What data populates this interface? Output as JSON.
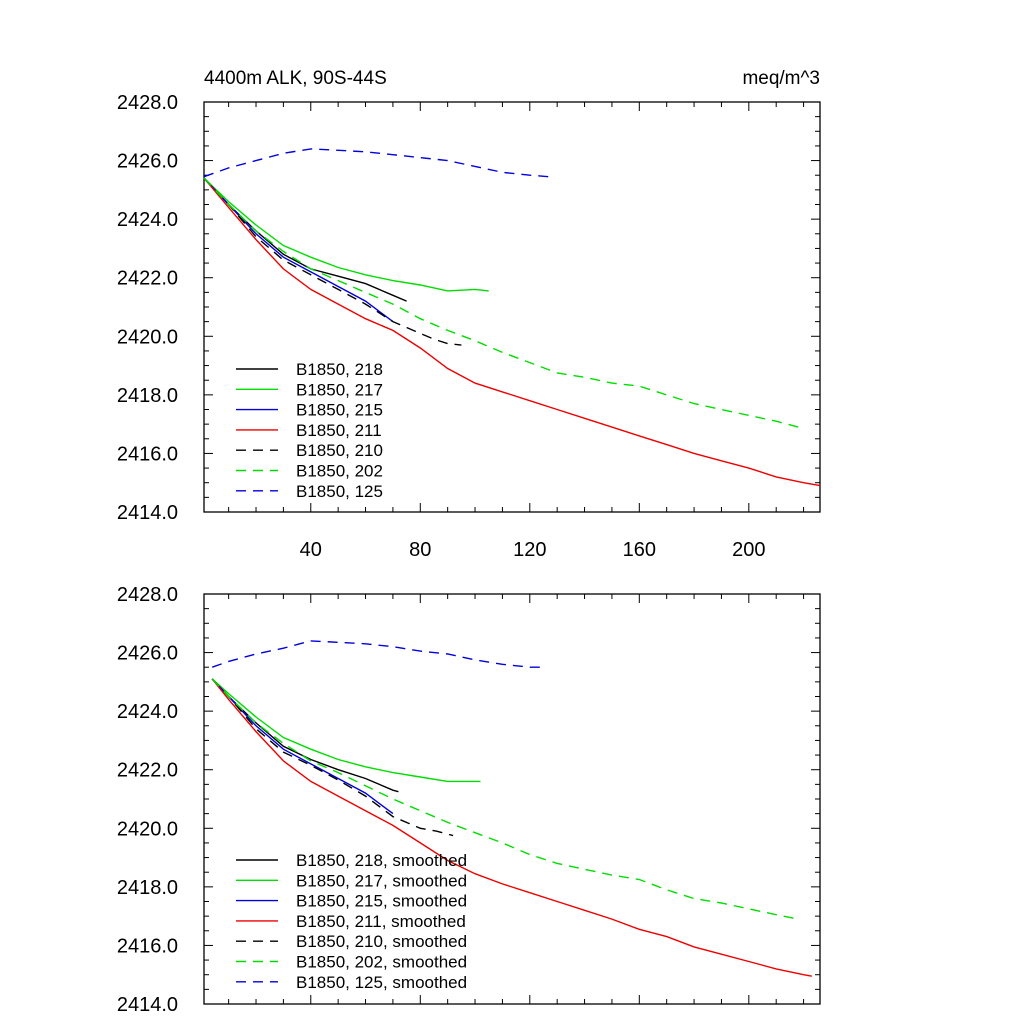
{
  "figure": {
    "title_left": "4400m ALK, 90S-44S",
    "title_right": "meq/m^3"
  },
  "colors": {
    "black": "#000000",
    "green": "#00dd00",
    "blue": "#0000dd",
    "red": "#ee0000"
  },
  "chart_data": [
    {
      "type": "line",
      "title": "4400m ALK, 90S-44S",
      "units": "meq/m^3",
      "xlim": [
        1,
        226
      ],
      "ylim": [
        2414.0,
        2428.0
      ],
      "xticks": [
        40,
        80,
        120,
        160,
        200
      ],
      "xtick_labels": [
        "40",
        "80",
        "120",
        "160",
        "200"
      ],
      "yticks": [
        2414,
        2416,
        2418,
        2420,
        2422,
        2424,
        2426,
        2428
      ],
      "ytick_labels": [
        "2414.0",
        "2416.0",
        "2418.0",
        "2420.0",
        "2422.0",
        "2424.0",
        "2426.0",
        "2428.0"
      ],
      "legend_position": "bottom-left",
      "grid": false,
      "series": [
        {
          "name": "B1850, 218",
          "color": "black",
          "dash": "solid",
          "x": [
            1,
            10,
            20,
            30,
            40,
            50,
            60,
            70,
            75
          ],
          "y": [
            2425.4,
            2424.5,
            2423.6,
            2422.8,
            2422.3,
            2422.05,
            2421.8,
            2421.4,
            2421.2
          ]
        },
        {
          "name": "B1850, 217",
          "color": "green",
          "dash": "solid",
          "x": [
            1,
            10,
            20,
            30,
            40,
            50,
            60,
            70,
            80,
            90,
            100,
            105
          ],
          "y": [
            2425.4,
            2424.6,
            2423.8,
            2423.1,
            2422.7,
            2422.35,
            2422.1,
            2421.9,
            2421.75,
            2421.55,
            2421.6,
            2421.55
          ]
        },
        {
          "name": "B1850, 215",
          "color": "blue",
          "dash": "solid",
          "x": [
            1,
            10,
            20,
            30,
            40,
            50,
            60,
            70
          ],
          "y": [
            2425.4,
            2424.5,
            2423.5,
            2422.7,
            2422.2,
            2421.7,
            2421.2,
            2420.5
          ]
        },
        {
          "name": "B1850, 211",
          "color": "red",
          "dash": "solid",
          "x": [
            1,
            10,
            20,
            30,
            40,
            50,
            60,
            70,
            80,
            90,
            100,
            110,
            120,
            130,
            140,
            150,
            160,
            170,
            180,
            190,
            200,
            210,
            220,
            226
          ],
          "y": [
            2425.4,
            2424.4,
            2423.3,
            2422.3,
            2421.6,
            2421.1,
            2420.6,
            2420.2,
            2419.6,
            2418.9,
            2418.4,
            2418.1,
            2417.8,
            2417.5,
            2417.2,
            2416.9,
            2416.6,
            2416.3,
            2416.0,
            2415.75,
            2415.5,
            2415.2,
            2415.0,
            2414.9
          ]
        },
        {
          "name": "B1850, 210",
          "color": "black",
          "dash": "dashed",
          "x": [
            1,
            10,
            20,
            30,
            40,
            50,
            60,
            70,
            80,
            85,
            90,
            95
          ],
          "y": [
            2425.4,
            2424.5,
            2423.4,
            2422.6,
            2422.1,
            2421.6,
            2421.1,
            2420.5,
            2420.1,
            2419.9,
            2419.75,
            2419.7
          ]
        },
        {
          "name": "B1850, 202",
          "color": "green",
          "dash": "dashed",
          "x": [
            1,
            10,
            20,
            30,
            40,
            50,
            60,
            70,
            80,
            90,
            100,
            110,
            120,
            130,
            140,
            150,
            160,
            170,
            180,
            190,
            200,
            210,
            220
          ],
          "y": [
            2425.4,
            2424.5,
            2423.6,
            2422.9,
            2422.3,
            2421.9,
            2421.5,
            2421.1,
            2420.6,
            2420.2,
            2419.85,
            2419.45,
            2419.1,
            2418.75,
            2418.6,
            2418.4,
            2418.3,
            2418.0,
            2417.7,
            2417.5,
            2417.3,
            2417.1,
            2416.85
          ]
        },
        {
          "name": "B1850, 125",
          "color": "blue",
          "dash": "dashed",
          "x": [
            1,
            10,
            20,
            30,
            40,
            50,
            60,
            70,
            80,
            90,
            100,
            110,
            120,
            127
          ],
          "y": [
            2425.45,
            2425.75,
            2426.0,
            2426.25,
            2426.4,
            2426.35,
            2426.3,
            2426.2,
            2426.1,
            2426.0,
            2425.8,
            2425.6,
            2425.5,
            2425.45
          ]
        }
      ]
    },
    {
      "type": "line",
      "xlim": [
        1,
        226
      ],
      "ylim": [
        2414.0,
        2428.0
      ],
      "yticks": [
        2414,
        2416,
        2418,
        2420,
        2422,
        2424,
        2426,
        2428
      ],
      "ytick_labels": [
        "2414.0",
        "2416.0",
        "2418.0",
        "2420.0",
        "2422.0",
        "2424.0",
        "2426.0",
        "2428.0"
      ],
      "legend_position": "bottom-left",
      "grid": false,
      "series": [
        {
          "name": "B1850, 218, smoothed",
          "color": "black",
          "dash": "solid",
          "x": [
            4,
            10,
            20,
            30,
            40,
            50,
            60,
            70,
            72
          ],
          "y": [
            2425.1,
            2424.5,
            2423.6,
            2422.8,
            2422.35,
            2422.0,
            2421.7,
            2421.3,
            2421.25
          ]
        },
        {
          "name": "B1850, 217, smoothed",
          "color": "green",
          "dash": "solid",
          "x": [
            4,
            10,
            20,
            30,
            40,
            50,
            60,
            70,
            80,
            90,
            100,
            102
          ],
          "y": [
            2425.1,
            2424.6,
            2423.8,
            2423.1,
            2422.7,
            2422.35,
            2422.1,
            2421.9,
            2421.75,
            2421.6,
            2421.6,
            2421.6
          ]
        },
        {
          "name": "B1850, 215, smoothed",
          "color": "blue",
          "dash": "solid",
          "x": [
            4,
            10,
            20,
            30,
            40,
            50,
            60,
            70
          ],
          "y": [
            2425.1,
            2424.5,
            2423.5,
            2422.7,
            2422.2,
            2421.7,
            2421.2,
            2420.5
          ]
        },
        {
          "name": "B1850, 211, smoothed",
          "color": "red",
          "dash": "solid",
          "x": [
            4,
            10,
            20,
            30,
            40,
            50,
            60,
            70,
            80,
            90,
            100,
            110,
            120,
            130,
            140,
            150,
            160,
            170,
            180,
            190,
            200,
            210,
            220,
            223
          ],
          "y": [
            2425.1,
            2424.4,
            2423.3,
            2422.3,
            2421.6,
            2421.1,
            2420.6,
            2420.1,
            2419.5,
            2418.9,
            2418.45,
            2418.1,
            2417.8,
            2417.5,
            2417.2,
            2416.9,
            2416.55,
            2416.3,
            2415.95,
            2415.7,
            2415.45,
            2415.2,
            2415.0,
            2414.95
          ]
        },
        {
          "name": "B1850, 210, smoothed",
          "color": "black",
          "dash": "dashed",
          "x": [
            4,
            10,
            20,
            30,
            40,
            50,
            60,
            70,
            80,
            86,
            92
          ],
          "y": [
            2425.1,
            2424.5,
            2423.4,
            2422.6,
            2422.15,
            2421.65,
            2421.1,
            2420.4,
            2420.0,
            2419.9,
            2419.75
          ]
        },
        {
          "name": "B1850, 202, smoothed",
          "color": "green",
          "dash": "dashed",
          "x": [
            4,
            10,
            20,
            30,
            40,
            50,
            60,
            70,
            80,
            90,
            100,
            110,
            120,
            130,
            140,
            150,
            160,
            170,
            180,
            190,
            200,
            210,
            218
          ],
          "y": [
            2425.1,
            2424.5,
            2423.6,
            2422.9,
            2422.3,
            2421.9,
            2421.45,
            2421.0,
            2420.6,
            2420.2,
            2419.85,
            2419.5,
            2419.1,
            2418.8,
            2418.6,
            2418.4,
            2418.25,
            2417.9,
            2417.6,
            2417.45,
            2417.25,
            2417.05,
            2416.9
          ]
        },
        {
          "name": "B1850, 125, smoothed",
          "color": "blue",
          "dash": "dashed",
          "x": [
            4,
            10,
            20,
            30,
            40,
            50,
            60,
            70,
            80,
            90,
            100,
            110,
            120,
            124
          ],
          "y": [
            2425.5,
            2425.7,
            2425.95,
            2426.15,
            2426.4,
            2426.35,
            2426.3,
            2426.2,
            2426.05,
            2425.95,
            2425.75,
            2425.6,
            2425.5,
            2425.5
          ]
        }
      ]
    }
  ]
}
